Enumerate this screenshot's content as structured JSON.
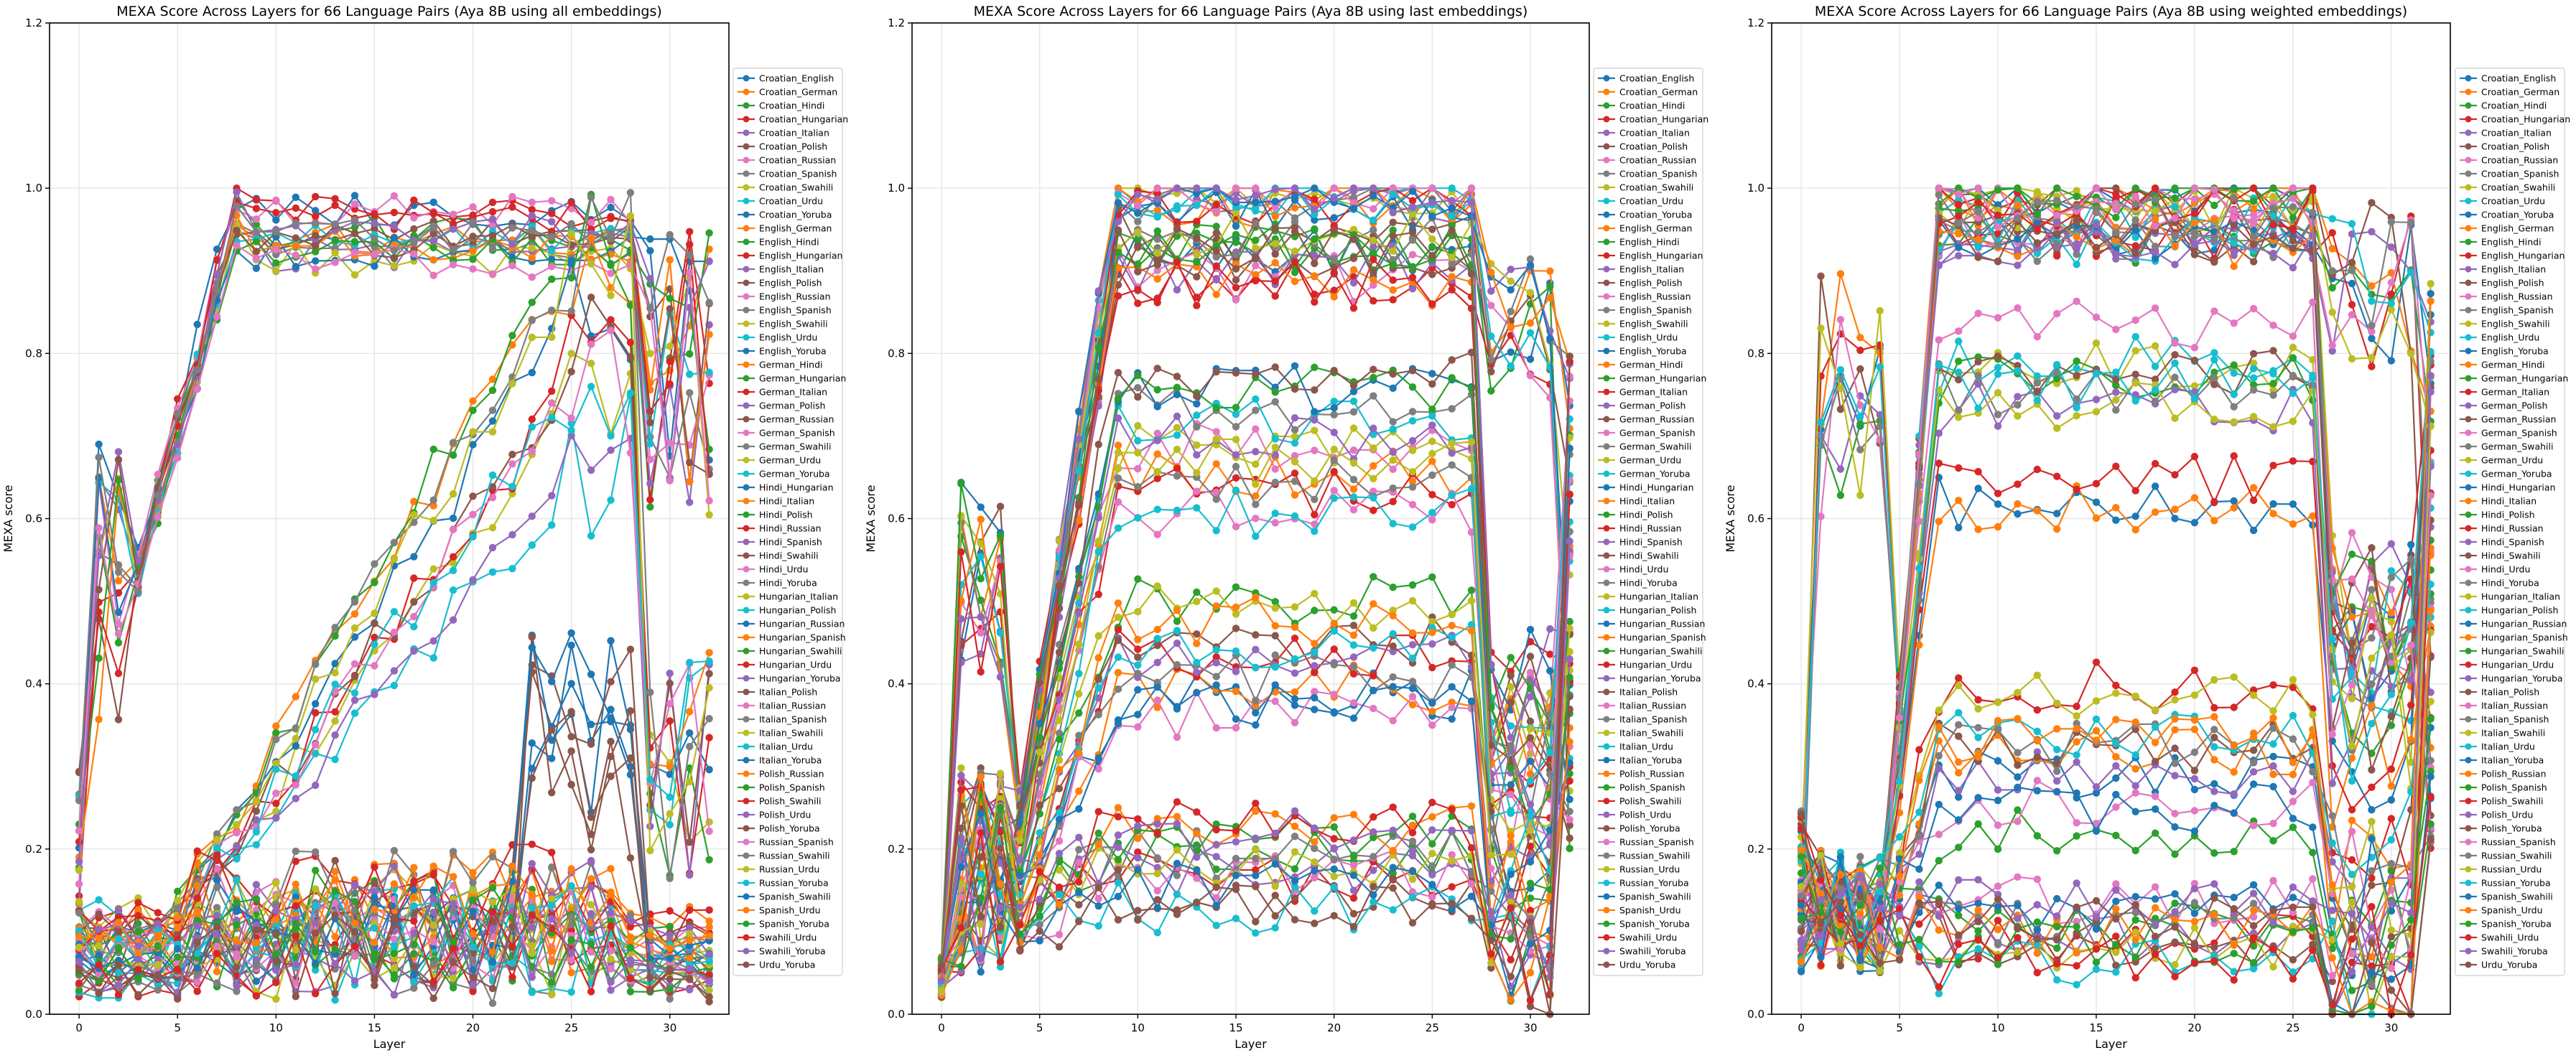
{
  "chart_data": [
    {
      "type": "line",
      "title": "MEXA Score Across Layers for 66 Language Pairs (Aya 8B using all embeddings)",
      "xlabel": "Layer",
      "ylabel": "MEXA score",
      "xlim": [
        -1.5,
        33.0
      ],
      "ylim": [
        0.0,
        1.2
      ],
      "xticks": [
        "0",
        "5",
        "10",
        "15",
        "20",
        "25",
        "30"
      ],
      "yticks": [
        "0.0",
        "0.2",
        "0.4",
        "0.6",
        "0.8",
        "1.0",
        "1.2"
      ],
      "grid": true,
      "legend_position": "right",
      "profile": "all"
    },
    {
      "type": "line",
      "title": "MEXA Score Across Layers for 66 Language Pairs (Aya 8B using last embeddings)",
      "xlabel": "Layer",
      "ylabel": "MEXA score",
      "xlim": [
        -1.5,
        33.0
      ],
      "ylim": [
        0.0,
        1.2
      ],
      "xticks": [
        "0",
        "5",
        "10",
        "15",
        "20",
        "25",
        "30"
      ],
      "yticks": [
        "0.0",
        "0.2",
        "0.4",
        "0.6",
        "0.8",
        "1.0",
        "1.2"
      ],
      "grid": true,
      "legend_position": "right",
      "profile": "last"
    },
    {
      "type": "line",
      "title": "MEXA Score Across Layers for 66 Language Pairs (Aya 8B using weighted embeddings)",
      "xlabel": "Layer",
      "ylabel": "MEXA score",
      "xlim": [
        -1.5,
        33.0
      ],
      "ylim": [
        0.0,
        1.2
      ],
      "xticks": [
        "0",
        "5",
        "10",
        "15",
        "20",
        "25",
        "30"
      ],
      "yticks": [
        "0.0",
        "0.2",
        "0.4",
        "0.6",
        "0.8",
        "1.0",
        "1.2"
      ],
      "grid": true,
      "legend_position": "right",
      "profile": "weighted"
    }
  ],
  "series_names": [
    "Croatian_English",
    "Croatian_German",
    "Croatian_Hindi",
    "Croatian_Hungarian",
    "Croatian_Italian",
    "Croatian_Polish",
    "Croatian_Russian",
    "Croatian_Spanish",
    "Croatian_Swahili",
    "Croatian_Urdu",
    "Croatian_Yoruba",
    "English_German",
    "English_Hindi",
    "English_Hungarian",
    "English_Italian",
    "English_Polish",
    "English_Russian",
    "English_Spanish",
    "English_Swahili",
    "English_Urdu",
    "English_Yoruba",
    "German_Hindi",
    "German_Hungarian",
    "German_Italian",
    "German_Polish",
    "German_Russian",
    "German_Spanish",
    "German_Swahili",
    "German_Urdu",
    "German_Yoruba",
    "Hindi_Hungarian",
    "Hindi_Italian",
    "Hindi_Polish",
    "Hindi_Russian",
    "Hindi_Spanish",
    "Hindi_Swahili",
    "Hindi_Urdu",
    "Hindi_Yoruba",
    "Hungarian_Italian",
    "Hungarian_Polish",
    "Hungarian_Russian",
    "Hungarian_Spanish",
    "Hungarian_Swahili",
    "Hungarian_Urdu",
    "Hungarian_Yoruba",
    "Italian_Polish",
    "Italian_Russian",
    "Italian_Spanish",
    "Italian_Swahili",
    "Italian_Urdu",
    "Italian_Yoruba",
    "Polish_Russian",
    "Polish_Spanish",
    "Polish_Swahili",
    "Polish_Urdu",
    "Polish_Yoruba",
    "Russian_Spanish",
    "Russian_Swahili",
    "Russian_Urdu",
    "Russian_Yoruba",
    "Spanish_Swahili",
    "Spanish_Urdu",
    "Spanish_Yoruba",
    "Swahili_Urdu",
    "Swahili_Yoruba",
    "Urdu_Yoruba"
  ],
  "colors": [
    "#1f77b4",
    "#ff7f0e",
    "#2ca02c",
    "#d62728",
    "#9467bd",
    "#8c564b",
    "#e377c2",
    "#7f7f7f",
    "#bcbd22",
    "#17becf"
  ]
}
